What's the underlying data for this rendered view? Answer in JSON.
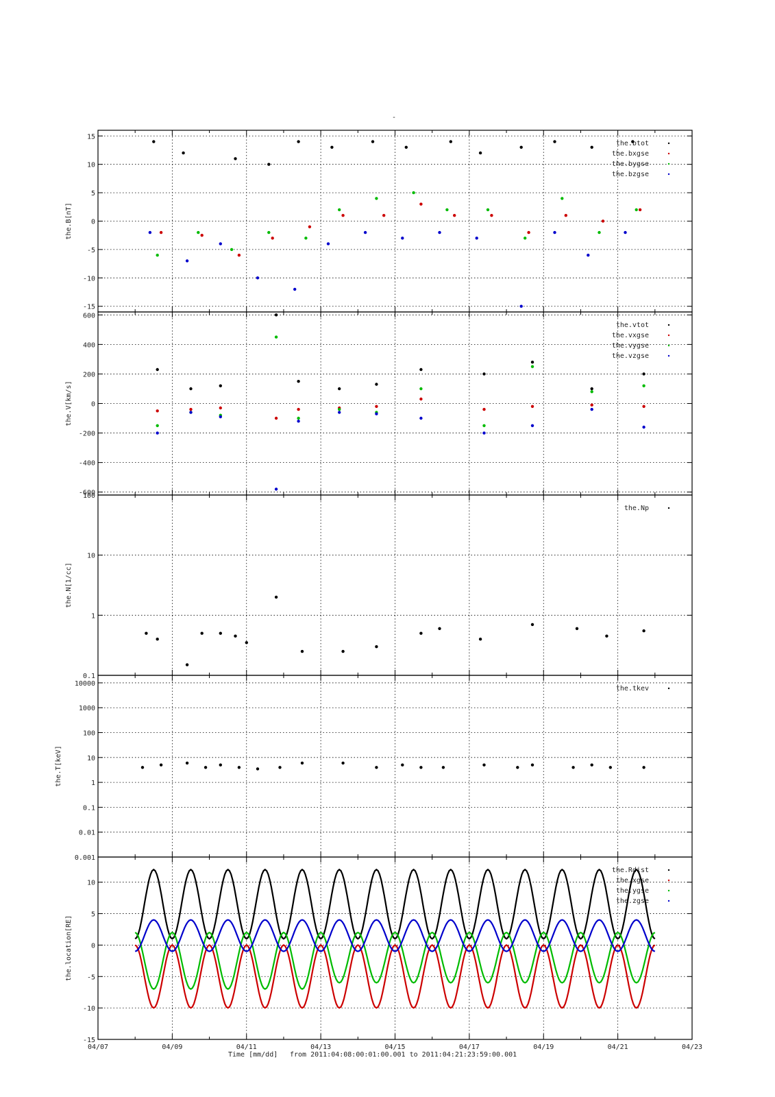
{
  "title": "-",
  "xaxis": {
    "tick_labels": [
      "04/07",
      "04/09",
      "04/11",
      "04/13",
      "04/15",
      "04/17",
      "04/19",
      "04/21",
      "04/23"
    ],
    "xlabel": "Time [mm/dd]",
    "range_text": "from 2011:04:08:00:01:00.001  to  2011:04:21:23:59:00.001",
    "range_days": [
      7,
      23
    ]
  },
  "colors": {
    "black": "#000000",
    "red": "#cc0000",
    "green": "#00bb00",
    "blue": "#0000cc"
  },
  "chart_data": [
    {
      "type": "scatter",
      "ylabel": "the.B[nT]",
      "ylim": [
        -16,
        16
      ],
      "yticks": [
        15,
        10,
        5,
        0,
        -5,
        -10,
        -15
      ],
      "ytick_labels": [
        "15",
        "10",
        "5",
        "0",
        "-5",
        "-10",
        "-15"
      ],
      "legend": [
        "the.btot",
        "the.bxgse",
        "the.bygse",
        "the.bzgse"
      ],
      "legend_position": "top-right",
      "grid": true,
      "series": [
        {
          "name": "the.btot",
          "color": "black",
          "x": [
            8.5,
            9.3,
            10.7,
            11.6,
            12.4,
            13.3,
            14.4,
            15.3,
            16.5,
            17.3,
            18.4,
            19.3,
            20.3,
            21.4
          ],
          "y": [
            14,
            12,
            11,
            10,
            14,
            13,
            14,
            13,
            14,
            12,
            13,
            14,
            13,
            14
          ]
        },
        {
          "name": "the.bxgse",
          "color": "red",
          "x": [
            8.7,
            9.8,
            10.8,
            11.7,
            12.7,
            13.6,
            14.7,
            15.7,
            16.6,
            17.6,
            18.6,
            19.6,
            20.6,
            21.6
          ],
          "y": [
            -2,
            -2.5,
            -6,
            -3,
            -1,
            1,
            1,
            3,
            1,
            1,
            -2,
            1,
            0,
            2
          ]
        },
        {
          "name": "the.bygse",
          "color": "green",
          "x": [
            8.6,
            9.7,
            10.6,
            11.6,
            12.6,
            13.5,
            14.5,
            15.5,
            16.4,
            17.5,
            18.5,
            19.5,
            20.5,
            21.5
          ],
          "y": [
            -6,
            -2,
            -5,
            -2,
            -3,
            2,
            4,
            5,
            2,
            2,
            -3,
            4,
            -2,
            2
          ]
        },
        {
          "name": "the.bzgse",
          "color": "blue",
          "x": [
            8.4,
            9.4,
            10.3,
            11.3,
            12.3,
            13.2,
            14.2,
            15.2,
            16.2,
            17.2,
            18.4,
            19.3,
            20.2,
            21.2
          ],
          "y": [
            -2,
            -7,
            -4,
            -10,
            -12,
            -4,
            -2,
            -3,
            -2,
            -3,
            -15,
            -2,
            -6,
            -2
          ]
        }
      ]
    },
    {
      "type": "scatter",
      "ylabel": "the.V[km/s]",
      "ylim": [
        -620,
        620
      ],
      "yticks": [
        600,
        400,
        200,
        0,
        -200,
        -400,
        -600
      ],
      "ytick_labels": [
        "600",
        "400",
        "200",
        "0",
        "-200",
        "-400",
        "-600"
      ],
      "legend": [
        "the.vtot",
        "the.vxgse",
        "the.vygse",
        "the.vzgse"
      ],
      "legend_position": "top-right",
      "grid": true,
      "series": [
        {
          "name": "the.vtot",
          "color": "black",
          "x": [
            8.6,
            9.5,
            10.3,
            11.8,
            12.4,
            13.5,
            14.5,
            15.7,
            17.4,
            18.7,
            20.3,
            21.7
          ],
          "y": [
            230,
            100,
            120,
            600,
            150,
            100,
            130,
            230,
            200,
            280,
            100,
            200
          ]
        },
        {
          "name": "the.vxgse",
          "color": "red",
          "x": [
            8.6,
            9.5,
            10.3,
            11.8,
            12.4,
            13.5,
            14.5,
            15.7,
            17.4,
            18.7,
            20.3,
            21.7
          ],
          "y": [
            -50,
            -40,
            -30,
            -100,
            -40,
            -30,
            -20,
            30,
            -40,
            -20,
            -10,
            -20
          ]
        },
        {
          "name": "the.vygse",
          "color": "green",
          "x": [
            8.6,
            9.5,
            10.3,
            11.8,
            12.4,
            13.5,
            14.5,
            15.7,
            17.4,
            18.7,
            20.3,
            21.7
          ],
          "y": [
            -150,
            -60,
            -80,
            450,
            -100,
            -40,
            -60,
            100,
            -150,
            250,
            80,
            120
          ]
        },
        {
          "name": "the.vzgse",
          "color": "blue",
          "x": [
            8.6,
            9.5,
            10.3,
            11.8,
            12.4,
            13.5,
            14.5,
            15.7,
            17.4,
            18.7,
            20.3,
            21.7
          ],
          "y": [
            -200,
            -60,
            -90,
            -580,
            -120,
            -60,
            -70,
            -100,
            -200,
            -150,
            -40,
            -160
          ]
        }
      ]
    },
    {
      "type": "scatter",
      "ylabel": "the.N[1/cc]",
      "yscale": "log",
      "ylim": [
        0.1,
        100
      ],
      "yticks": [
        100,
        10,
        1,
        0.1
      ],
      "ytick_labels": [
        "100",
        "10",
        "1",
        "0.1"
      ],
      "legend": [
        "the.Np"
      ],
      "legend_position": "top-right",
      "grid": true,
      "series": [
        {
          "name": "the.Np",
          "color": "black",
          "x": [
            8.3,
            8.6,
            9.4,
            9.8,
            10.3,
            10.7,
            11.0,
            11.8,
            12.5,
            13.6,
            14.5,
            15.7,
            16.2,
            17.3,
            18.7,
            19.9,
            20.7,
            21.7
          ],
          "y": [
            0.5,
            0.4,
            0.15,
            0.5,
            0.5,
            0.45,
            0.35,
            2.0,
            0.25,
            0.25,
            0.3,
            0.5,
            0.6,
            0.4,
            0.7,
            0.6,
            0.45,
            0.55
          ]
        }
      ]
    },
    {
      "type": "scatter",
      "ylabel": "the.T[keV]",
      "yscale": "log",
      "ylim": [
        0.001,
        20000
      ],
      "yticks": [
        10000,
        1000,
        100,
        10,
        1,
        0.1,
        0.01,
        0.001
      ],
      "ytick_labels": [
        "10000",
        "1000",
        "100",
        "10",
        "1",
        "0.1",
        "0.01",
        "0.001"
      ],
      "legend": [
        "the.tkev"
      ],
      "legend_position": "top-right",
      "grid": true,
      "series": [
        {
          "name": "the.tkev",
          "color": "black",
          "x": [
            8.2,
            8.7,
            9.4,
            9.9,
            10.3,
            10.8,
            11.3,
            11.9,
            12.5,
            13.6,
            14.5,
            15.2,
            15.7,
            16.3,
            17.4,
            18.3,
            18.7,
            19.8,
            20.3,
            20.8,
            21.7
          ],
          "y": [
            4,
            5,
            6,
            4,
            5,
            4,
            3.5,
            4,
            6,
            6,
            4,
            5,
            4,
            4,
            5,
            4,
            5,
            4,
            5,
            4,
            4
          ]
        }
      ]
    },
    {
      "type": "line",
      "ylabel": "the.location[RE]",
      "ylim": [
        -15,
        14
      ],
      "yticks": [
        10,
        5,
        0,
        -5,
        -10,
        -15
      ],
      "ytick_labels": [
        "10",
        "5",
        "0",
        "-5",
        "-10",
        "-15"
      ],
      "legend": [
        "the.Rdist",
        "the.xgse",
        "the.ygse",
        "the.zgse"
      ],
      "legend_position": "top-right",
      "grid": true,
      "orbit_period_days": 1.0,
      "series": [
        {
          "name": "the.Rdist",
          "color": "black",
          "x": [
            8.0,
            8.5,
            9.0,
            9.5,
            10.0,
            10.5,
            11.0,
            11.5,
            12.0,
            12.5,
            13.0,
            13.5,
            14.0,
            14.5,
            15.0,
            15.5,
            16.0,
            16.5,
            17.0,
            17.5,
            18.0,
            18.5,
            19.0,
            19.5,
            20.0,
            20.5,
            21.0,
            21.5,
            22.0
          ],
          "y": [
            1,
            12,
            1,
            12,
            1,
            12,
            1,
            12,
            1,
            12,
            1,
            12,
            1,
            12,
            1,
            12,
            1,
            12,
            1,
            12,
            1,
            12,
            1,
            12,
            1,
            12,
            1,
            12,
            1
          ]
        },
        {
          "name": "the.xgse",
          "color": "red",
          "x": [
            8.0,
            8.5,
            9.0,
            9.5,
            10.0,
            10.5,
            11.0,
            11.5,
            12.0,
            12.5,
            13.0,
            13.5,
            14.0,
            14.5,
            15.0,
            15.5,
            16.0,
            16.5,
            17.0,
            17.5,
            18.0,
            18.5,
            19.0,
            19.5,
            20.0,
            20.5,
            21.0,
            21.5,
            22.0
          ],
          "y": [
            0,
            -10,
            0,
            -10,
            0,
            -10,
            0,
            -10,
            0,
            -10,
            0,
            -10,
            0,
            -10,
            0,
            -10,
            0,
            -10,
            0,
            -10,
            0,
            -10,
            0,
            -10,
            0,
            -10,
            0,
            -10,
            0
          ]
        },
        {
          "name": "the.ygse",
          "color": "green",
          "x": [
            8.0,
            8.5,
            9.0,
            9.5,
            10.0,
            10.5,
            11.0,
            11.5,
            12.0,
            12.5,
            13.0,
            13.5,
            14.0,
            14.5,
            15.0,
            15.5,
            16.0,
            16.5,
            17.0,
            17.5,
            18.0,
            18.5,
            19.0,
            19.5,
            20.0,
            20.5,
            21.0,
            21.5,
            22.0
          ],
          "y": [
            2,
            -7,
            2,
            -7,
            2,
            -7,
            2,
            -7,
            2,
            -7,
            2,
            -6,
            2,
            -6,
            2,
            -6,
            2,
            -6,
            2,
            -6,
            2,
            -6,
            2,
            -6,
            2,
            -6,
            2,
            -6,
            2
          ]
        },
        {
          "name": "the.zgse",
          "color": "blue",
          "x": [
            8.0,
            8.5,
            9.0,
            9.5,
            10.0,
            10.5,
            11.0,
            11.5,
            12.0,
            12.5,
            13.0,
            13.5,
            14.0,
            14.5,
            15.0,
            15.5,
            16.0,
            16.5,
            17.0,
            17.5,
            18.0,
            18.5,
            19.0,
            19.5,
            20.0,
            20.5,
            21.0,
            21.5,
            22.0
          ],
          "y": [
            -1,
            4,
            -1,
            4,
            -1,
            4,
            -1,
            4,
            -1,
            4,
            -1,
            4,
            -1,
            4,
            -1,
            4,
            -1,
            4,
            -1,
            4,
            -1,
            4,
            -1,
            4,
            -1,
            4,
            -1,
            4,
            -1
          ]
        }
      ]
    }
  ]
}
